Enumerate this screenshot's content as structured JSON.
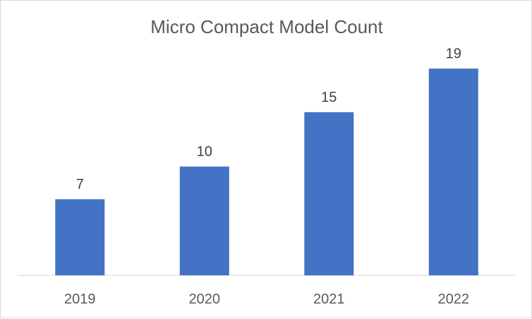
{
  "chart_data": {
    "type": "bar",
    "title": "Micro Compact Model Count",
    "categories": [
      "2019",
      "2020",
      "2021",
      "2022"
    ],
    "values": [
      7,
      10,
      15,
      19
    ],
    "xlabel": "",
    "ylabel": "",
    "ylim": [
      0,
      20
    ],
    "grid": false,
    "legend": "none",
    "data_labels": true,
    "colors": {
      "bar": "#4472c4",
      "axis": "#d9d9d9",
      "label_text": "#404040",
      "tick_text": "#595959"
    }
  }
}
